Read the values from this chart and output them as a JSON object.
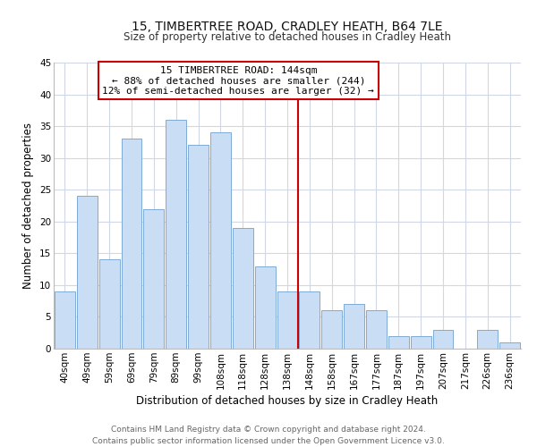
{
  "title": "15, TIMBERTREE ROAD, CRADLEY HEATH, B64 7LE",
  "subtitle": "Size of property relative to detached houses in Cradley Heath",
  "xlabel": "Distribution of detached houses by size in Cradley Heath",
  "ylabel": "Number of detached properties",
  "bar_labels": [
    "40sqm",
    "49sqm",
    "59sqm",
    "69sqm",
    "79sqm",
    "89sqm",
    "99sqm",
    "108sqm",
    "118sqm",
    "128sqm",
    "138sqm",
    "148sqm",
    "158sqm",
    "167sqm",
    "177sqm",
    "187sqm",
    "197sqm",
    "207sqm",
    "217sqm",
    "226sqm",
    "236sqm"
  ],
  "bar_values": [
    9,
    24,
    14,
    33,
    22,
    36,
    32,
    34,
    19,
    13,
    9,
    9,
    6,
    7,
    6,
    2,
    2,
    3,
    0,
    3,
    1
  ],
  "bar_color": "#c9ddf5",
  "bar_edge_color": "#7eaad4",
  "vline_after_index": 10,
  "vline_color": "#cc0000",
  "annotation_title": "15 TIMBERTREE ROAD: 144sqm",
  "annotation_line1": "← 88% of detached houses are smaller (244)",
  "annotation_line2": "12% of semi-detached houses are larger (32) →",
  "annotation_box_color": "#ffffff",
  "annotation_box_edge": "#cc0000",
  "ylim": [
    0,
    45
  ],
  "yticks": [
    0,
    5,
    10,
    15,
    20,
    25,
    30,
    35,
    40,
    45
  ],
  "footer_line1": "Contains HM Land Registry data © Crown copyright and database right 2024.",
  "footer_line2": "Contains public sector information licensed under the Open Government Licence v3.0.",
  "bg_color": "#ffffff",
  "grid_color": "#d0d8e8",
  "title_fontsize": 10,
  "subtitle_fontsize": 8.5,
  "axis_label_fontsize": 8.5,
  "tick_fontsize": 7.5,
  "annotation_fontsize": 8,
  "footer_fontsize": 6.5
}
